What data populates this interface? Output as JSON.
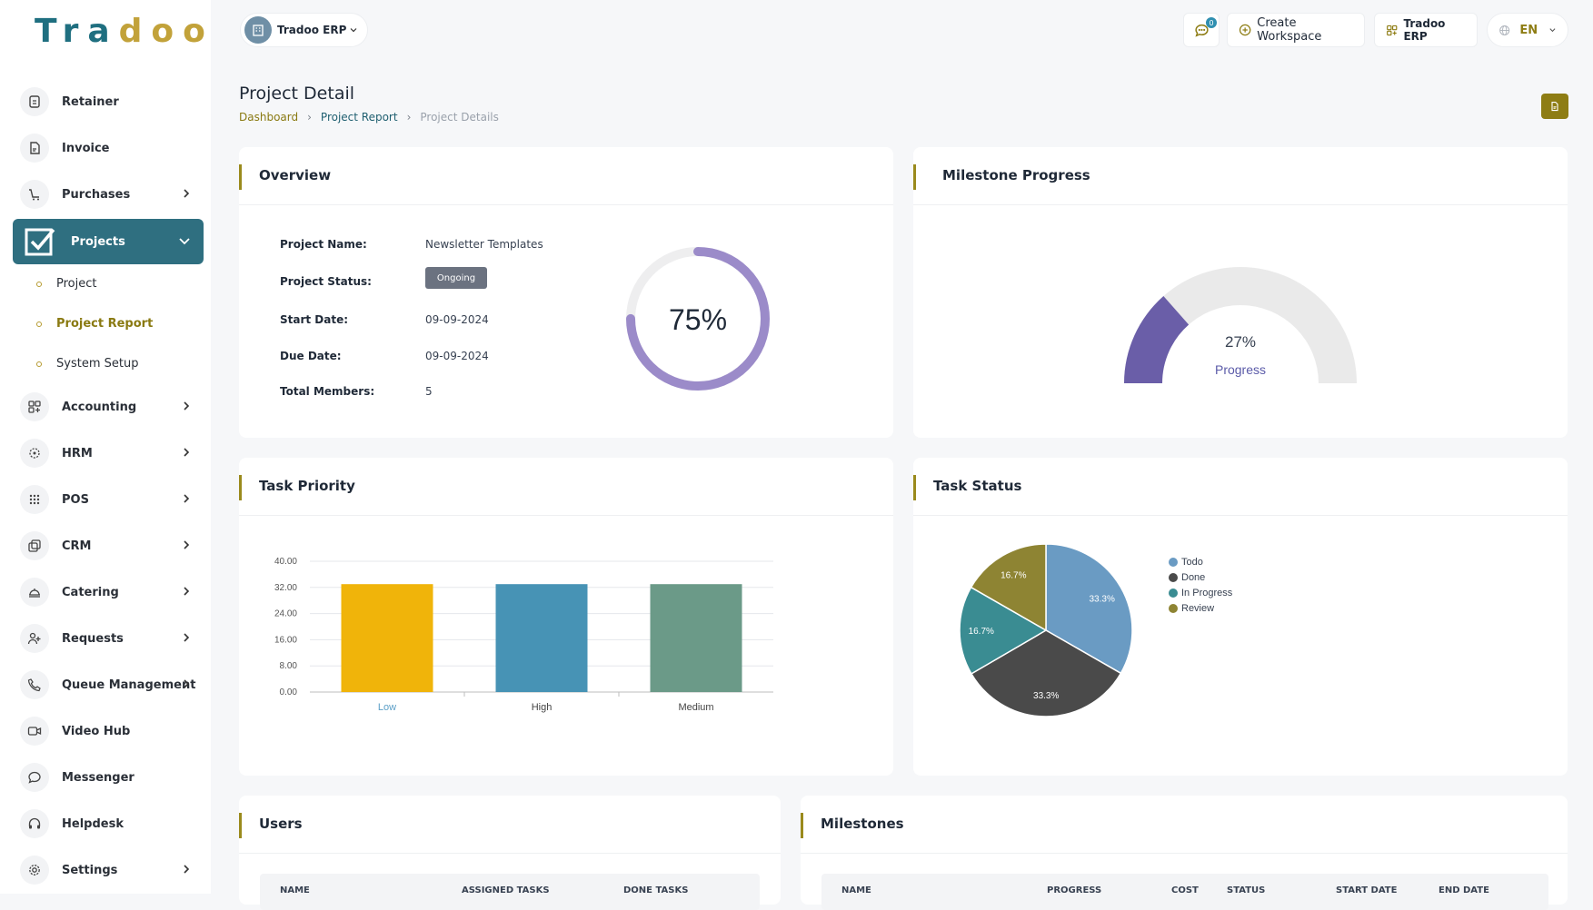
{
  "brand": {
    "logo_part1": "Tra",
    "logo_part2": "doo"
  },
  "sidebar": {
    "items": [
      {
        "label": "Retainer"
      },
      {
        "label": "Invoice"
      },
      {
        "label": "Purchases"
      },
      {
        "label": "Projects"
      },
      {
        "label": "Accounting"
      },
      {
        "label": "HRM"
      },
      {
        "label": "POS"
      },
      {
        "label": "CRM"
      },
      {
        "label": "Catering"
      },
      {
        "label": "Requests"
      },
      {
        "label": "Queue Management"
      },
      {
        "label": "Video Hub"
      },
      {
        "label": "Messenger"
      },
      {
        "label": "Helpdesk"
      },
      {
        "label": "Settings"
      }
    ],
    "projects_sub": [
      {
        "label": "Project"
      },
      {
        "label": "Project Report"
      },
      {
        "label": "System Setup"
      }
    ]
  },
  "topbar": {
    "workspace": "Tradoo ERP",
    "notification_count": "0",
    "create_workspace": "Create Workspace",
    "app_switch": "Tradoo ERP",
    "language": "EN"
  },
  "header": {
    "title": "Project Detail",
    "breadcrumb": [
      "Dashboard",
      "Project Report",
      "Project Details"
    ]
  },
  "overview": {
    "title": "Overview",
    "fields": [
      {
        "label": "Project Name:",
        "value": "Newsletter Templates"
      },
      {
        "label": "Project Status:",
        "value": "Ongoing"
      },
      {
        "label": "Start Date:",
        "value": "09-09-2024"
      },
      {
        "label": "Due Date:",
        "value": "09-09-2024"
      },
      {
        "label": "Total Members:",
        "value": "5"
      }
    ],
    "progress_text": "75%",
    "progress_value": 75
  },
  "milestone": {
    "title": "Milestone Progress",
    "percent_text": "27%",
    "percent_value": 27,
    "caption": "Progress"
  },
  "task_priority": {
    "title": "Task Priority"
  },
  "task_status": {
    "title": "Task Status"
  },
  "users": {
    "title": "Users",
    "columns": [
      "NAME",
      "ASSIGNED TASKS",
      "DONE TASKS"
    ]
  },
  "milestones": {
    "title": "Milestones",
    "columns": [
      "NAME",
      "PROGRESS",
      "COST",
      "STATUS",
      "START DATE",
      "END DATE"
    ]
  },
  "colors": {
    "accent": "#2f6f80",
    "gold": "#8e7d14"
  },
  "chart_data": [
    {
      "type": "bar",
      "categories": [
        "Low",
        "High",
        "Medium"
      ],
      "values": [
        33,
        33,
        33
      ],
      "colors": [
        "#f0b40a",
        "#4793b5",
        "#6b9a88"
      ],
      "yticks": [
        "0.00",
        "8.00",
        "16.00",
        "24.00",
        "32.00",
        "40.00"
      ],
      "ylim": [
        0,
        40
      ],
      "grid": true
    },
    {
      "type": "pie",
      "labels": [
        "Todo",
        "Done",
        "In Progress",
        "Review"
      ],
      "values": [
        33.3,
        33.3,
        16.7,
        16.7
      ],
      "value_labels": [
        "33.3%",
        "33.3%",
        "16.7%",
        "16.7%"
      ],
      "colors": [
        "#6a9bc3",
        "#4a4a4a",
        "#3a8c92",
        "#8e8433"
      ],
      "legend": "right"
    }
  ]
}
